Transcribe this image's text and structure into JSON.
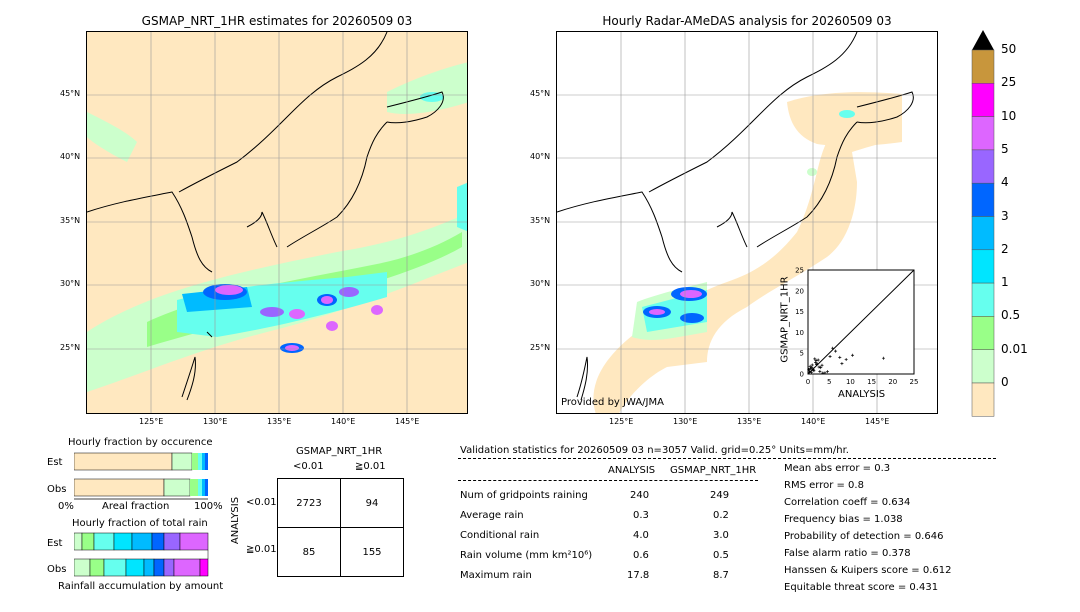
{
  "left_map": {
    "title": "GSMAP_NRT_1HR estimates for 20260509 03",
    "lat_labels": [
      "45°N",
      "40°N",
      "35°N",
      "30°N",
      "25°N"
    ],
    "lon_labels": [
      "125°E",
      "130°E",
      "135°E",
      "140°E",
      "145°E"
    ]
  },
  "right_map": {
    "title": "Hourly Radar-AMeDAS analysis for 20260509 03",
    "lat_labels": [
      "45°N",
      "40°N",
      "35°N",
      "30°N",
      "25°N"
    ],
    "lon_labels": [
      "125°E",
      "130°E",
      "135°E",
      "140°E",
      "145°E"
    ],
    "credit": "Provided by JWA/JMA"
  },
  "colorbar": {
    "labels": [
      "50",
      "25",
      "10",
      "5",
      "4",
      "3",
      "2",
      "1",
      "0.5",
      "0.01",
      "0"
    ],
    "colors": [
      "#c8963c",
      "#ff00ff",
      "#dd66ff",
      "#9966ff",
      "#0066ff",
      "#00bbff",
      "#00e5ff",
      "#66ffee",
      "#99ff88",
      "#ccffcc",
      "#ffe8c0"
    ],
    "extend_color": "#000000"
  },
  "inset_scatter": {
    "xlabel": "ANALYSIS",
    "ylabel": "GSMAP_NRT_1HR",
    "ticks": [
      "0",
      "5",
      "10",
      "15",
      "20",
      "25"
    ],
    "range": [
      0,
      25
    ]
  },
  "fraction_occurrence": {
    "title": "Hourly fraction by occurence",
    "rows": [
      "Est",
      "Obs"
    ],
    "axis_left": "0%",
    "axis_mid": "Areal fraction",
    "axis_right": "100%"
  },
  "fraction_total": {
    "title": "Hourly fraction of total rain",
    "rows": [
      "Est",
      "Obs"
    ],
    "footer": "Rainfall accumulation by amount"
  },
  "contingency": {
    "title": "GSMAP_NRT_1HR",
    "col_labels": [
      "<0.01",
      "≧0.01"
    ],
    "row_axis": "ANALYSIS",
    "row_labels": [
      "<0.01",
      "≧0.01"
    ],
    "cells": [
      [
        "2723",
        "94"
      ],
      [
        "85",
        "155"
      ]
    ]
  },
  "validation": {
    "header": "Validation statistics for 20260509 03  n=3057 Valid. grid=0.25° Units=mm/hr.",
    "col_analysis": "ANALYSIS",
    "col_gsmap": "GSMAP_NRT_1HR",
    "rows": [
      {
        "label": "Num of gridpoints raining",
        "analysis": "240",
        "gsmap": "249"
      },
      {
        "label": "Average rain",
        "analysis": "0.3",
        "gsmap": "0.2"
      },
      {
        "label": "Conditional rain",
        "analysis": "4.0",
        "gsmap": "3.0"
      },
      {
        "label": "Rain volume (mm km²10⁶)",
        "analysis": "0.6",
        "gsmap": "0.5"
      },
      {
        "label": "Maximum rain",
        "analysis": "17.8",
        "gsmap": "8.7"
      }
    ],
    "scores": [
      "Mean abs error =    0.3",
      "RMS error =    0.8",
      "Correlation coeff =  0.634",
      "Frequency bias =  1.038",
      "Probability of detection =  0.646",
      "False alarm ratio =  0.378",
      "Hanssen & Kuipers score =  0.612",
      "Equitable threat score =  0.431"
    ]
  }
}
